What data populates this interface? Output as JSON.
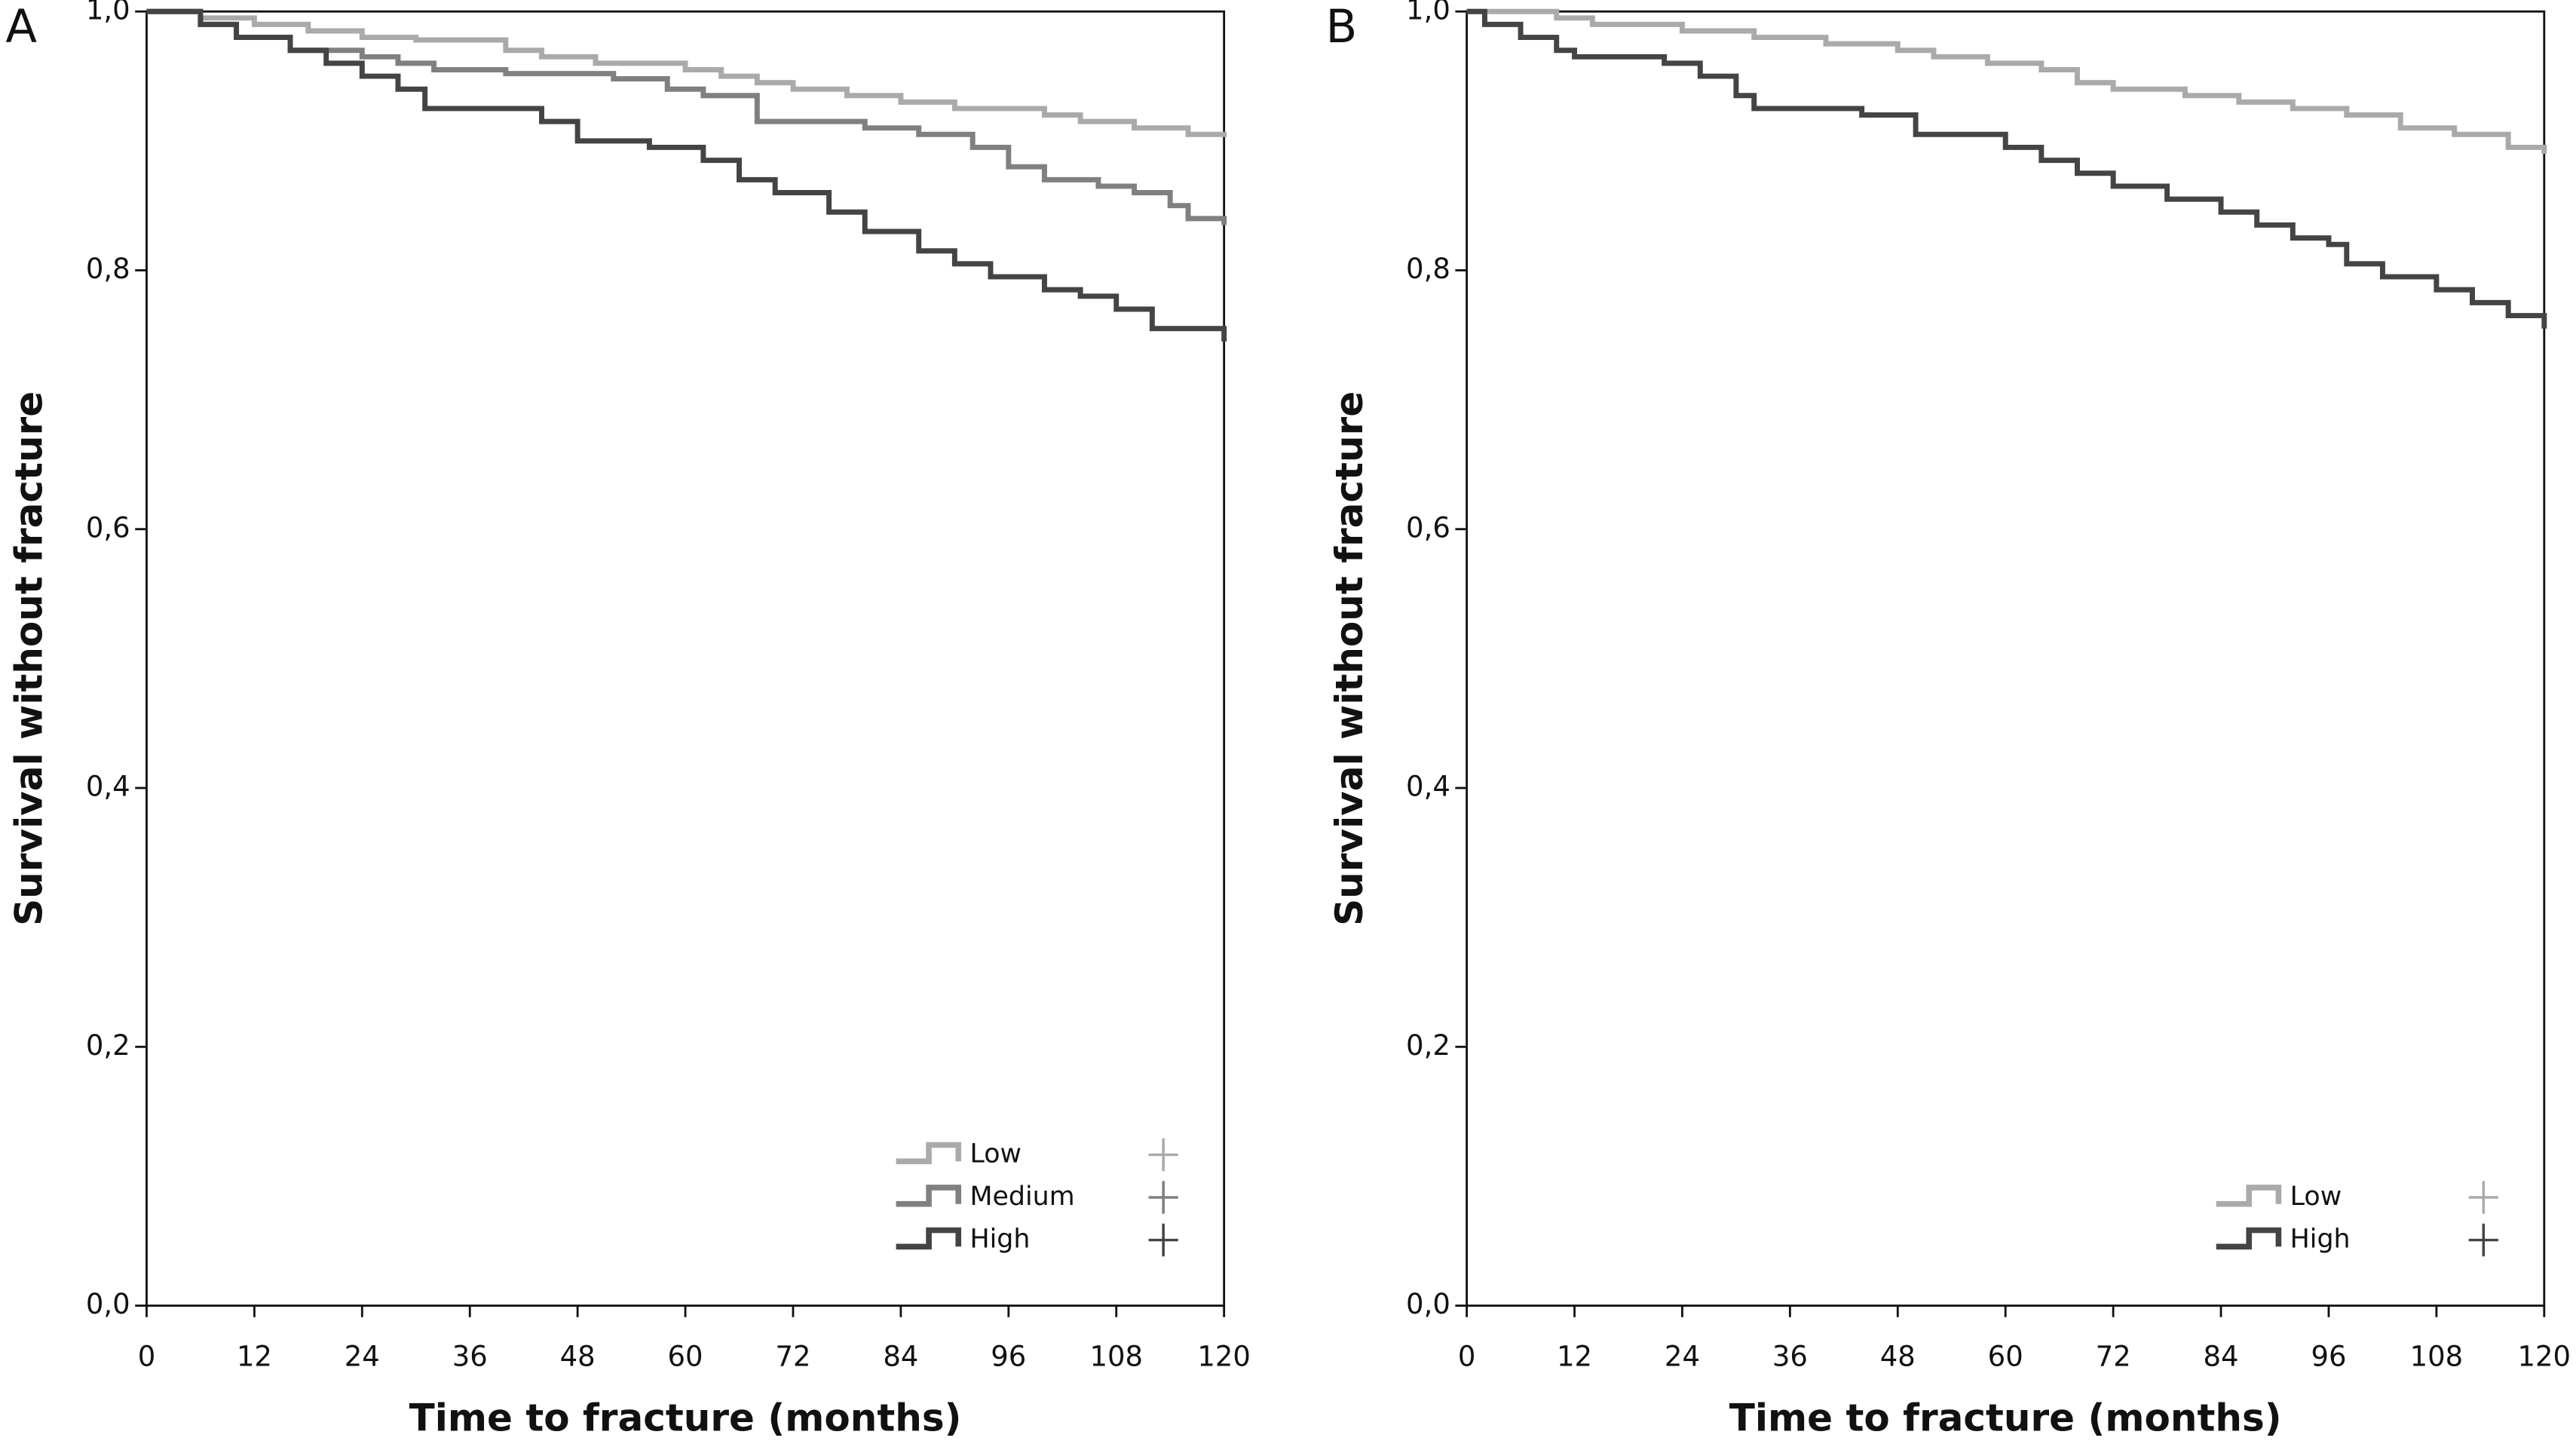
{
  "chart_data": [
    {
      "type": "line",
      "step": true,
      "panel_label": "A",
      "xlabel": "Time to fracture (months)",
      "ylabel": "Survival without fracture",
      "xlim": [
        0,
        120
      ],
      "xticks": [
        0,
        12,
        24,
        36,
        48,
        60,
        72,
        84,
        96,
        108,
        120
      ],
      "ylim": [
        0,
        1
      ],
      "yticks": [
        {
          "value": 0,
          "label": "0,0"
        },
        {
          "value": 0.2,
          "label": "0,2"
        },
        {
          "value": 0.4,
          "label": "0,4"
        },
        {
          "value": 0.6,
          "label": "0,6"
        },
        {
          "value": 0.8,
          "label": "0,8"
        },
        {
          "value": 1,
          "label": "1,0"
        }
      ],
      "legend": "lower right",
      "series": [
        {
          "name": "Low",
          "color": "#aaaaaa",
          "x": [
            0,
            6,
            12,
            18,
            24,
            30,
            40,
            44,
            50,
            60,
            64,
            68,
            72,
            78,
            84,
            90,
            100,
            104,
            110,
            116,
            120
          ],
          "values": [
            1,
            0.995,
            0.99,
            0.985,
            0.98,
            0.978,
            0.97,
            0.965,
            0.96,
            0.955,
            0.95,
            0.945,
            0.94,
            0.935,
            0.93,
            0.925,
            0.92,
            0.915,
            0.91,
            0.905,
            0.903
          ]
        },
        {
          "name": "Medium",
          "color": "#808080",
          "x": [
            0,
            6,
            10,
            16,
            24,
            28,
            32,
            40,
            52,
            58,
            62,
            68,
            80,
            86,
            92,
            96,
            100,
            106,
            110,
            114,
            116,
            120
          ],
          "values": [
            1,
            0.99,
            0.98,
            0.97,
            0.965,
            0.96,
            0.955,
            0.952,
            0.948,
            0.94,
            0.935,
            0.915,
            0.91,
            0.905,
            0.895,
            0.88,
            0.87,
            0.865,
            0.86,
            0.85,
            0.84,
            0.835
          ]
        },
        {
          "name": "High",
          "color": "#444444",
          "x": [
            0,
            6,
            10,
            16,
            20,
            24,
            28,
            31,
            44,
            48,
            56,
            62,
            66,
            70,
            76,
            80,
            86,
            90,
            94,
            100,
            104,
            108,
            112,
            120
          ],
          "values": [
            1,
            0.99,
            0.98,
            0.97,
            0.96,
            0.95,
            0.94,
            0.925,
            0.915,
            0.9,
            0.895,
            0.885,
            0.87,
            0.86,
            0.845,
            0.83,
            0.815,
            0.805,
            0.795,
            0.785,
            0.78,
            0.77,
            0.755,
            0.745
          ]
        }
      ]
    },
    {
      "type": "line",
      "step": true,
      "panel_label": "B",
      "xlabel": "Time to fracture (months)",
      "ylabel": "Survival without fracture",
      "xlim": [
        0,
        120
      ],
      "xticks": [
        0,
        12,
        24,
        36,
        48,
        60,
        72,
        84,
        96,
        108,
        120
      ],
      "ylim": [
        0,
        1
      ],
      "yticks": [
        {
          "value": 0,
          "label": "0,0"
        },
        {
          "value": 0.2,
          "label": "0,2"
        },
        {
          "value": 0.4,
          "label": "0,4"
        },
        {
          "value": 0.6,
          "label": "0,6"
        },
        {
          "value": 0.8,
          "label": "0,8"
        },
        {
          "value": 1,
          "label": "1,0"
        }
      ],
      "legend": "lower right",
      "series": [
        {
          "name": "Low",
          "color": "#aaaaaa",
          "x": [
            0,
            10,
            14,
            24,
            32,
            40,
            48,
            52,
            58,
            64,
            68,
            72,
            80,
            86,
            92,
            98,
            104,
            110,
            116,
            120
          ],
          "values": [
            1,
            0.995,
            0.99,
            0.985,
            0.98,
            0.975,
            0.97,
            0.965,
            0.96,
            0.955,
            0.945,
            0.94,
            0.935,
            0.93,
            0.925,
            0.92,
            0.91,
            0.905,
            0.895,
            0.89
          ]
        },
        {
          "name": "High",
          "color": "#444444",
          "x": [
            0,
            2,
            6,
            10,
            12,
            22,
            26,
            30,
            32,
            44,
            50,
            60,
            64,
            68,
            72,
            78,
            84,
            88,
            92,
            96,
            98,
            102,
            108,
            112,
            116,
            120
          ],
          "values": [
            1,
            0.99,
            0.98,
            0.97,
            0.965,
            0.96,
            0.95,
            0.935,
            0.925,
            0.92,
            0.905,
            0.895,
            0.885,
            0.875,
            0.865,
            0.855,
            0.845,
            0.835,
            0.825,
            0.82,
            0.805,
            0.795,
            0.785,
            0.775,
            0.765,
            0.755
          ]
        }
      ]
    }
  ]
}
